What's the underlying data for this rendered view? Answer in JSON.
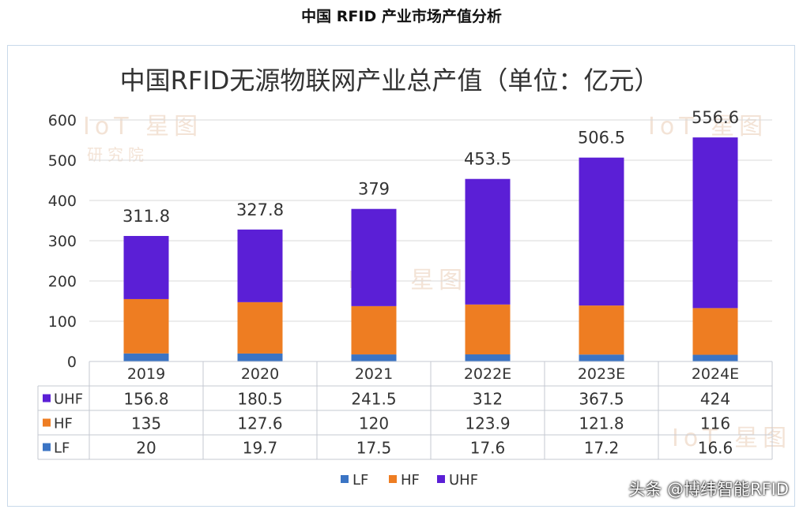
{
  "page_title": "中国 RFID 产业市场产值分析",
  "credit": "头条 @博纬智能RFID",
  "watermarks": [
    "IoT 星图",
    "研究院"
  ],
  "colors": {
    "UHF": "#5b1fd6",
    "HF": "#ee7d22",
    "LF": "#3b74c4",
    "grid": "#d9d9d9",
    "table": "#c4c9d2"
  },
  "chart_data": {
    "type": "bar",
    "stacked": true,
    "title": "中国RFID无源物联网产业总产值（单位：亿元）",
    "categories": [
      "2019",
      "2020",
      "2021",
      "2022E",
      "2023E",
      "2024E"
    ],
    "series": [
      {
        "name": "LF",
        "values": [
          20,
          19.7,
          17.5,
          17.6,
          17.2,
          16.6
        ]
      },
      {
        "name": "HF",
        "values": [
          135,
          127.6,
          120,
          123.9,
          121.8,
          116
        ]
      },
      {
        "name": "UHF",
        "values": [
          156.8,
          180.5,
          241.5,
          312,
          367.5,
          424
        ]
      }
    ],
    "totals": [
      "311.8",
      "327.8",
      "379",
      "453.5",
      "506.5",
      "556.6"
    ],
    "ylim": [
      0,
      600
    ],
    "yticks": [
      0,
      100,
      200,
      300,
      400,
      500,
      600
    ],
    "table_rows": [
      {
        "name": "UHF",
        "values": [
          "156.8",
          "180.5",
          "241.5",
          "312",
          "367.5",
          "424"
        ]
      },
      {
        "name": "HF",
        "values": [
          "135",
          "127.6",
          "120",
          "123.9",
          "121.8",
          "116"
        ]
      },
      {
        "name": "LF",
        "values": [
          "20",
          "19.7",
          "17.5",
          "17.6",
          "17.2",
          "16.6"
        ]
      }
    ],
    "legend": [
      "LF",
      "HF",
      "UHF"
    ],
    "legend_position": "bottom"
  }
}
